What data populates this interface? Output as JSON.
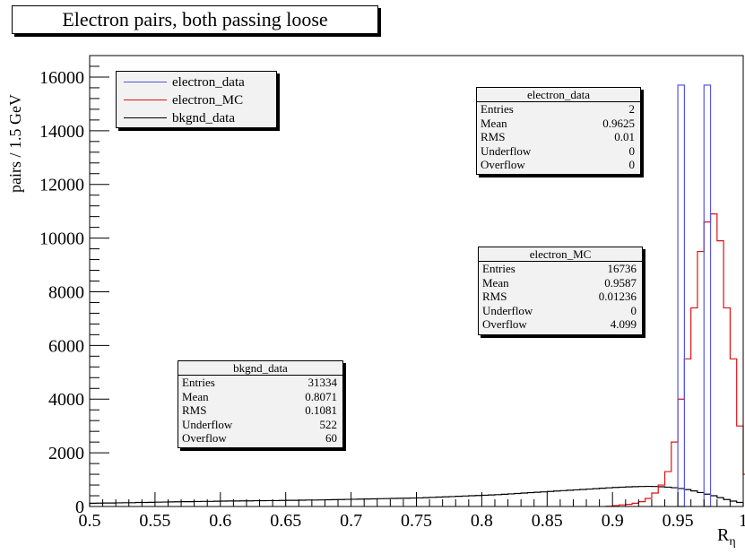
{
  "title": "Electron pairs, both passing loose",
  "chart_data": {
    "type": "histogram",
    "xlabel": "R",
    "xlabel_sub": "η",
    "ylabel": "pairs / 1.5 GeV",
    "xlim": [
      0.5,
      1.0
    ],
    "ylim": [
      0,
      16800
    ],
    "x_ticks": [
      "0.5",
      "0.55",
      "0.6",
      "0.65",
      "0.7",
      "0.75",
      "0.8",
      "0.85",
      "0.9",
      "0.95",
      "1"
    ],
    "x_tick_values": [
      0.5,
      0.55,
      0.6,
      0.65,
      0.7,
      0.75,
      0.8,
      0.85,
      0.9,
      0.95,
      1.0
    ],
    "y_ticks": [
      "0",
      "2000",
      "4000",
      "6000",
      "8000",
      "10000",
      "12000",
      "14000",
      "16000"
    ],
    "y_tick_values": [
      0,
      2000,
      4000,
      6000,
      8000,
      10000,
      12000,
      14000,
      16000
    ],
    "bin_width": 0.005,
    "series": [
      {
        "name": "electron_data",
        "color": "#5555dd",
        "bins": [
          {
            "x0": 0.95,
            "x1": 0.955,
            "y": 15700
          },
          {
            "x0": 0.97,
            "x1": 0.975,
            "y": 15700
          }
        ]
      },
      {
        "name": "electron_MC",
        "color": "#e01010",
        "start": 0.895,
        "values": [
          10,
          30,
          60,
          80,
          120,
          180,
          300,
          500,
          800,
          1300,
          2400,
          4000,
          5500,
          7400,
          9500,
          10600,
          10900,
          9900,
          7400,
          5500,
          3000,
          1200,
          500,
          200,
          100,
          50,
          20
        ]
      },
      {
        "name": "bkgnd_data",
        "color": "#000000",
        "start": 0.5,
        "values": [
          120,
          125,
          130,
          130,
          135,
          140,
          140,
          150,
          150,
          155,
          160,
          165,
          170,
          175,
          180,
          180,
          185,
          190,
          190,
          195,
          200,
          205,
          205,
          210,
          210,
          215,
          215,
          220,
          220,
          225,
          230,
          230,
          235,
          240,
          240,
          245,
          250,
          255,
          260,
          265,
          270,
          275,
          280,
          285,
          290,
          295,
          300,
          305,
          310,
          315,
          320,
          330,
          340,
          350,
          360,
          370,
          380,
          390,
          400,
          410,
          420,
          430,
          440,
          455,
          470,
          485,
          500,
          515,
          530,
          545,
          560,
          575,
          590,
          605,
          620,
          635,
          650,
          665,
          680,
          695,
          710,
          720,
          730,
          740,
          745,
          750,
          745,
          735,
          720,
          700,
          670,
          630,
          580,
          520,
          460,
          400,
          330,
          260,
          200,
          150
        ]
      }
    ],
    "legend": {
      "placement": "top-left",
      "entries": [
        {
          "label": "electron_data",
          "color": "#5555dd"
        },
        {
          "label": "electron_MC",
          "color": "#e01010"
        },
        {
          "label": "bkgnd_data",
          "color": "#000000"
        }
      ]
    },
    "stat_boxes": [
      {
        "name": "electron_data",
        "rows": [
          {
            "key": "Entries",
            "value": "2"
          },
          {
            "key": "Mean",
            "value": "0.9625"
          },
          {
            "key": "RMS",
            "value": "0.01"
          },
          {
            "key": "Underflow",
            "value": "0"
          },
          {
            "key": "Overflow",
            "value": "0"
          }
        ]
      },
      {
        "name": "electron_MC",
        "rows": [
          {
            "key": "Entries",
            "value": "16736"
          },
          {
            "key": "Mean",
            "value": "0.9587"
          },
          {
            "key": "RMS",
            "value": "0.01236"
          },
          {
            "key": "Underflow",
            "value": "0"
          },
          {
            "key": "Overflow",
            "value": "4.099"
          }
        ]
      },
      {
        "name": "bkgnd_data",
        "rows": [
          {
            "key": "Entries",
            "value": "31334"
          },
          {
            "key": "Mean",
            "value": "0.8071"
          },
          {
            "key": "RMS",
            "value": "0.1081"
          },
          {
            "key": "Underflow",
            "value": "522"
          },
          {
            "key": "Overflow",
            "value": "60"
          }
        ]
      }
    ]
  }
}
